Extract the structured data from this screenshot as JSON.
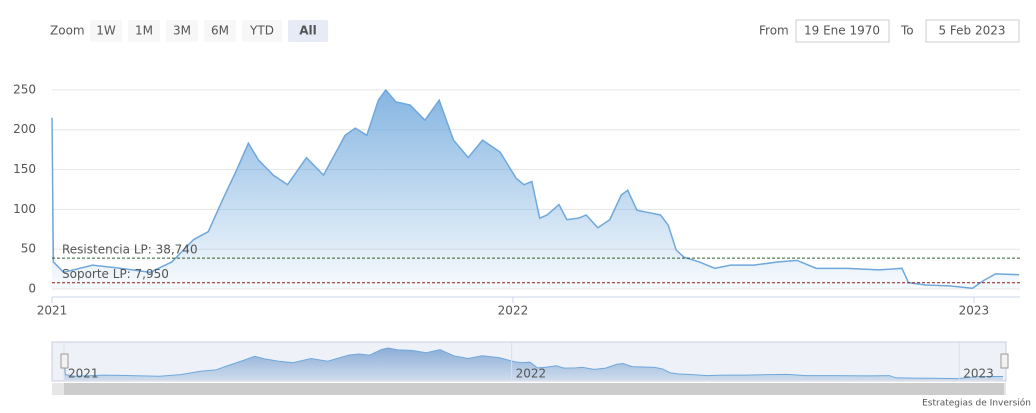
{
  "chart_data": {
    "type": "area",
    "zoom_label": "Zoom",
    "zoom_buttons": [
      "1W",
      "1M",
      "3M",
      "6M",
      "YTD",
      "All"
    ],
    "selected_button": 5,
    "from_label": "From",
    "from_value": "19 Ene 1970",
    "to_label": "To",
    "to_value": "5 Feb 2023",
    "credits": "Estrategias de Inversión",
    "color": "#6fa8dc",
    "grid": true,
    "xlim": [
      2021,
      2023.1
    ],
    "xticks": [
      2021,
      2022,
      2023
    ],
    "ylim": [
      -10,
      275
    ],
    "yticks": [
      0,
      50,
      100,
      150,
      200,
      250
    ],
    "reference_lines": [
      {
        "value": 38.74,
        "label": "Resistencia LP: 38,740",
        "color": "#2e5d2e"
      },
      {
        "value": 7.95,
        "label": "Soporte LP: 7,950",
        "color": "#8b1a1a"
      }
    ],
    "x": [
      2021.0,
      2021.003,
      2021.025,
      2021.088,
      2021.15,
      2021.213,
      2021.26,
      2021.307,
      2021.339,
      2021.37,
      2021.401,
      2021.426,
      2021.448,
      2021.48,
      2021.511,
      2021.552,
      2021.589,
      2021.636,
      2021.658,
      2021.683,
      2021.708,
      2021.724,
      2021.746,
      2021.777,
      2021.809,
      2021.84,
      2021.871,
      2021.903,
      2021.934,
      2021.972,
      2022.007,
      2022.024,
      2022.041,
      2022.058,
      2022.074,
      2022.1,
      2022.117,
      2022.142,
      2022.159,
      2022.184,
      2022.21,
      2022.235,
      2022.249,
      2022.269,
      2022.294,
      2022.32,
      2022.337,
      2022.354,
      2022.371,
      2022.404,
      2022.438,
      2022.472,
      2022.523,
      2022.574,
      2022.616,
      2022.658,
      2022.726,
      2022.794,
      2022.844,
      2022.858,
      2022.895,
      2022.946,
      2022.997,
      2023.022,
      2023.047,
      2023.098
    ],
    "values": [
      215,
      34,
      21,
      30,
      26,
      21,
      34,
      62,
      72,
      112,
      150,
      183,
      162,
      143,
      131,
      165,
      143,
      193,
      202,
      193,
      237,
      250,
      235,
      231,
      212,
      237,
      187,
      165,
      187,
      172,
      139,
      131,
      135,
      89,
      93,
      106,
      87,
      89,
      93,
      77,
      87,
      118,
      124,
      99,
      96,
      93,
      80,
      49,
      40,
      34,
      26,
      30,
      30,
      34,
      36,
      26,
      26,
      24,
      26,
      8,
      5,
      4,
      1,
      11,
      19,
      18
    ]
  }
}
